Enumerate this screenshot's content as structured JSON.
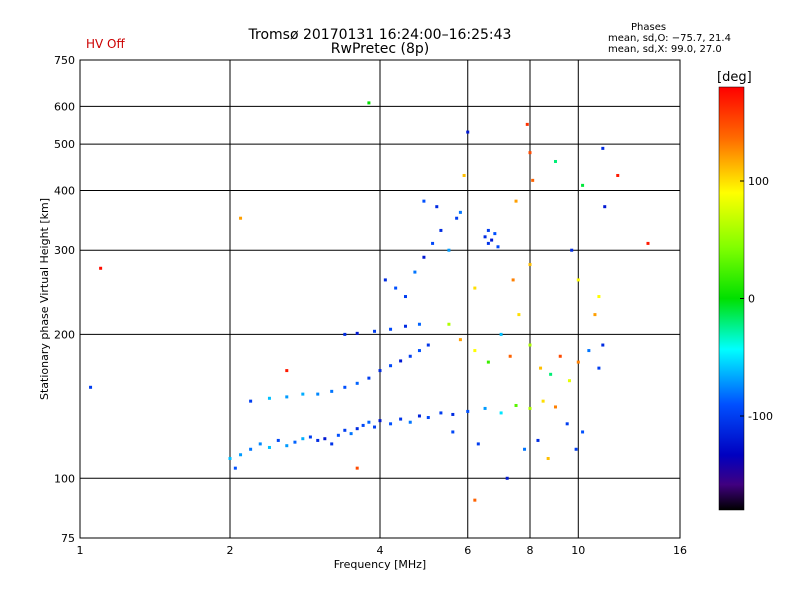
{
  "header": {
    "title_line1": "Tromsø 20170131 16:24:00–16:25:43",
    "title_line2": "RwPretec (8p)",
    "hv_status": "HV Off",
    "hv_status_color": "#cc0000",
    "phase_header": "Phases",
    "phase_line1": "mean, sd,O: −75.7, 21.4",
    "phase_line2": "mean, sd,X:  99.0, 27.0"
  },
  "chart_data": {
    "type": "scatter",
    "title": "Tromsø 20170131 16:24:00–16:25:43",
    "subtitle": "RwPretec (8p)",
    "xlabel": "Frequency [MHz]",
    "ylabel": "Stationary phase Virtual Height [km]",
    "xscale": "log",
    "yscale": "log",
    "xlim": [
      1,
      16
    ],
    "ylim": [
      75,
      750
    ],
    "xticks": [
      1,
      2,
      4,
      6,
      8,
      10,
      16
    ],
    "xtick_labels": [
      "1",
      "2",
      "4",
      "6",
      "8",
      "10",
      "16"
    ],
    "yticks": [
      75,
      100,
      200,
      300,
      400,
      500,
      600,
      750
    ],
    "ytick_labels": [
      "75",
      "100",
      "200",
      "300",
      "400",
      "500",
      "600",
      "750"
    ],
    "grid": true,
    "colorbar": {
      "label": "[deg]",
      "range": [
        -180,
        180
      ],
      "ticks": [
        100,
        0,
        -100
      ],
      "tick_labels": [
        "100",
        "0",
        "-100"
      ]
    },
    "series": [
      {
        "points": [
          {
            "x": 2.0,
            "y": 110,
            "phase": -60
          },
          {
            "x": 2.05,
            "y": 105,
            "phase": -90
          },
          {
            "x": 2.1,
            "y": 112,
            "phase": -70
          },
          {
            "x": 2.2,
            "y": 115,
            "phase": -80
          },
          {
            "x": 2.3,
            "y": 118,
            "phase": -75
          },
          {
            "x": 2.4,
            "y": 116,
            "phase": -60
          },
          {
            "x": 2.5,
            "y": 120,
            "phase": -95
          },
          {
            "x": 2.6,
            "y": 117,
            "phase": -70
          },
          {
            "x": 2.7,
            "y": 119,
            "phase": -85
          },
          {
            "x": 2.8,
            "y": 121,
            "phase": -65
          },
          {
            "x": 2.9,
            "y": 122,
            "phase": -100
          },
          {
            "x": 3.0,
            "y": 120,
            "phase": -110
          },
          {
            "x": 3.1,
            "y": 121,
            "phase": -120
          },
          {
            "x": 3.2,
            "y": 118,
            "phase": -105
          },
          {
            "x": 3.3,
            "y": 123,
            "phase": -90
          },
          {
            "x": 3.4,
            "y": 126,
            "phase": -100
          },
          {
            "x": 3.5,
            "y": 124,
            "phase": -80
          },
          {
            "x": 3.6,
            "y": 127,
            "phase": -110
          },
          {
            "x": 3.7,
            "y": 129,
            "phase": -95
          },
          {
            "x": 3.8,
            "y": 131,
            "phase": -85
          },
          {
            "x": 3.9,
            "y": 128,
            "phase": -100
          },
          {
            "x": 4.0,
            "y": 132,
            "phase": -120
          },
          {
            "x": 4.2,
            "y": 130,
            "phase": -90
          },
          {
            "x": 4.4,
            "y": 133,
            "phase": -105
          },
          {
            "x": 4.6,
            "y": 131,
            "phase": -80
          },
          {
            "x": 4.8,
            "y": 135,
            "phase": -115
          },
          {
            "x": 5.0,
            "y": 134,
            "phase": -95
          },
          {
            "x": 5.3,
            "y": 137,
            "phase": -100
          },
          {
            "x": 5.6,
            "y": 136,
            "phase": -110
          },
          {
            "x": 6.0,
            "y": 138,
            "phase": -90
          },
          {
            "x": 6.5,
            "y": 140,
            "phase": -70
          },
          {
            "x": 7.0,
            "y": 137,
            "phase": -50
          },
          {
            "x": 7.5,
            "y": 142,
            "phase": 30
          },
          {
            "x": 8.0,
            "y": 140,
            "phase": 60
          },
          {
            "x": 8.5,
            "y": 145,
            "phase": 100
          },
          {
            "x": 9.0,
            "y": 141,
            "phase": 130
          },
          {
            "x": 2.2,
            "y": 145,
            "phase": -100
          },
          {
            "x": 2.4,
            "y": 147,
            "phase": -60
          },
          {
            "x": 2.6,
            "y": 148,
            "phase": -70
          },
          {
            "x": 2.8,
            "y": 150,
            "phase": -65
          },
          {
            "x": 3.0,
            "y": 150,
            "phase": -75
          },
          {
            "x": 3.2,
            "y": 152,
            "phase": -80
          },
          {
            "x": 3.4,
            "y": 155,
            "phase": -90
          },
          {
            "x": 3.6,
            "y": 158,
            "phase": -85
          },
          {
            "x": 3.8,
            "y": 162,
            "phase": -100
          },
          {
            "x": 4.0,
            "y": 168,
            "phase": -110
          },
          {
            "x": 4.2,
            "y": 172,
            "phase": -95
          },
          {
            "x": 4.4,
            "y": 176,
            "phase": -120
          },
          {
            "x": 4.6,
            "y": 180,
            "phase": -100
          },
          {
            "x": 4.8,
            "y": 185,
            "phase": -90
          },
          {
            "x": 5.0,
            "y": 190,
            "phase": -105
          },
          {
            "x": 3.4,
            "y": 200,
            "phase": -110
          },
          {
            "x": 3.6,
            "y": 201,
            "phase": -120
          },
          {
            "x": 3.9,
            "y": 203,
            "phase": -100
          },
          {
            "x": 4.2,
            "y": 205,
            "phase": -95
          },
          {
            "x": 4.5,
            "y": 208,
            "phase": -110
          },
          {
            "x": 4.8,
            "y": 210,
            "phase": -85
          },
          {
            "x": 4.1,
            "y": 260,
            "phase": -110
          },
          {
            "x": 4.3,
            "y": 250,
            "phase": -90
          },
          {
            "x": 4.5,
            "y": 240,
            "phase": -100
          },
          {
            "x": 4.7,
            "y": 270,
            "phase": -80
          },
          {
            "x": 4.9,
            "y": 290,
            "phase": -120
          },
          {
            "x": 5.1,
            "y": 310,
            "phase": -95
          },
          {
            "x": 5.3,
            "y": 330,
            "phase": -110
          },
          {
            "x": 5.5,
            "y": 300,
            "phase": -70
          },
          {
            "x": 5.7,
            "y": 350,
            "phase": -100
          },
          {
            "x": 4.9,
            "y": 380,
            "phase": -90
          },
          {
            "x": 5.2,
            "y": 370,
            "phase": -110
          },
          {
            "x": 5.8,
            "y": 360,
            "phase": -80
          },
          {
            "x": 6.5,
            "y": 320,
            "phase": -110
          },
          {
            "x": 6.6,
            "y": 330,
            "phase": -100
          },
          {
            "x": 6.7,
            "y": 315,
            "phase": -120
          },
          {
            "x": 6.8,
            "y": 325,
            "phase": -90
          },
          {
            "x": 6.6,
            "y": 310,
            "phase": -105
          },
          {
            "x": 6.9,
            "y": 305,
            "phase": -95
          },
          {
            "x": 5.5,
            "y": 210,
            "phase": 60
          },
          {
            "x": 5.8,
            "y": 195,
            "phase": 120
          },
          {
            "x": 6.2,
            "y": 185,
            "phase": 90
          },
          {
            "x": 6.6,
            "y": 175,
            "phase": 20
          },
          {
            "x": 7.0,
            "y": 200,
            "phase": -60
          },
          {
            "x": 7.3,
            "y": 180,
            "phase": 140
          },
          {
            "x": 7.6,
            "y": 220,
            "phase": 100
          },
          {
            "x": 8.0,
            "y": 190,
            "phase": 60
          },
          {
            "x": 8.4,
            "y": 170,
            "phase": 110
          },
          {
            "x": 8.8,
            "y": 165,
            "phase": -20
          },
          {
            "x": 9.2,
            "y": 180,
            "phase": 150
          },
          {
            "x": 9.6,
            "y": 160,
            "phase": 80
          },
          {
            "x": 10.0,
            "y": 175,
            "phase": 130
          },
          {
            "x": 10.5,
            "y": 185,
            "phase": -80
          },
          {
            "x": 11.0,
            "y": 170,
            "phase": -100
          },
          {
            "x": 11.2,
            "y": 190,
            "phase": -110
          },
          {
            "x": 10.8,
            "y": 220,
            "phase": 120
          },
          {
            "x": 11.0,
            "y": 240,
            "phase": 90
          },
          {
            "x": 9.5,
            "y": 130,
            "phase": -100
          },
          {
            "x": 10.2,
            "y": 125,
            "phase": -90
          },
          {
            "x": 7.8,
            "y": 115,
            "phase": -80
          },
          {
            "x": 8.3,
            "y": 120,
            "phase": -110
          },
          {
            "x": 6.3,
            "y": 118,
            "phase": -100
          },
          {
            "x": 5.6,
            "y": 125,
            "phase": -95
          },
          {
            "x": 8.0,
            "y": 280,
            "phase": 110
          },
          {
            "x": 7.4,
            "y": 260,
            "phase": 130
          },
          {
            "x": 6.2,
            "y": 250,
            "phase": 100
          },
          {
            "x": 5.9,
            "y": 430,
            "phase": 110
          },
          {
            "x": 7.5,
            "y": 380,
            "phase": 120
          },
          {
            "x": 8.1,
            "y": 420,
            "phase": 140
          },
          {
            "x": 8.0,
            "y": 480,
            "phase": 150
          },
          {
            "x": 7.9,
            "y": 550,
            "phase": 160
          },
          {
            "x": 9.0,
            "y": 460,
            "phase": -20
          },
          {
            "x": 11.2,
            "y": 490,
            "phase": -110
          },
          {
            "x": 12.0,
            "y": 430,
            "phase": 170
          },
          {
            "x": 11.3,
            "y": 370,
            "phase": -120
          },
          {
            "x": 10.2,
            "y": 410,
            "phase": -10
          },
          {
            "x": 6.0,
            "y": 530,
            "phase": -120
          },
          {
            "x": 3.8,
            "y": 610,
            "phase": 0
          },
          {
            "x": 2.1,
            "y": 350,
            "phase": 120
          },
          {
            "x": 1.1,
            "y": 275,
            "phase": 175
          },
          {
            "x": 1.05,
            "y": 155,
            "phase": -100
          },
          {
            "x": 13.8,
            "y": 310,
            "phase": 170
          },
          {
            "x": 10.0,
            "y": 260,
            "phase": 90
          },
          {
            "x": 9.7,
            "y": 300,
            "phase": -110
          },
          {
            "x": 6.2,
            "y": 90,
            "phase": 140
          },
          {
            "x": 3.6,
            "y": 105,
            "phase": 150
          },
          {
            "x": 2.6,
            "y": 168,
            "phase": 170
          },
          {
            "x": 7.2,
            "y": 100,
            "phase": -120
          },
          {
            "x": 8.7,
            "y": 110,
            "phase": 110
          },
          {
            "x": 9.9,
            "y": 115,
            "phase": -100
          }
        ]
      }
    ]
  }
}
